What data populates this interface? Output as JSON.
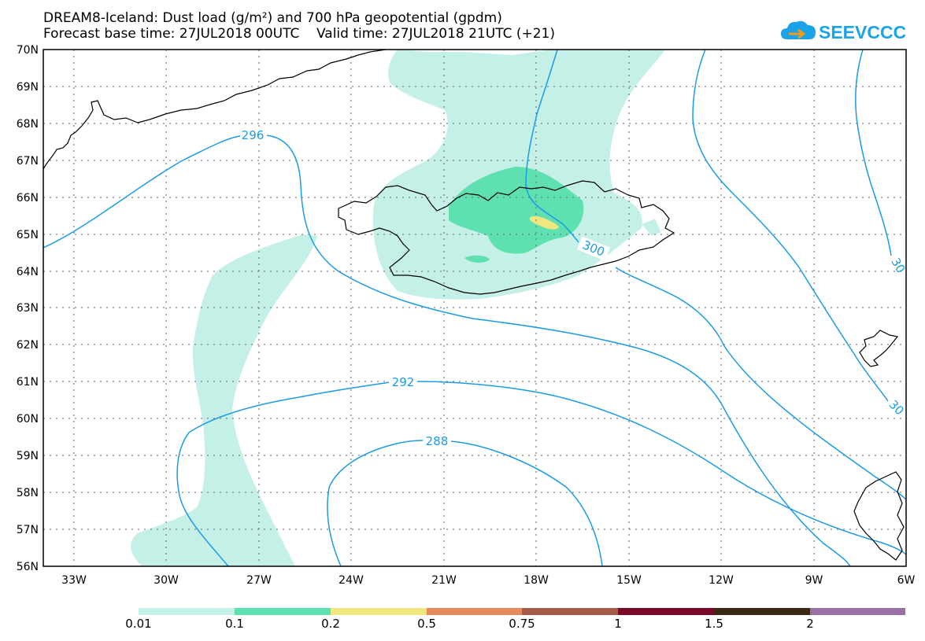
{
  "header": {
    "title": "DREAM8-Iceland: Dust load (g/m²) and 700 hPa geopotential (gpdm)",
    "subtitle": "Forecast base time: 27JUL2018 00UTC    Valid time: 27JUL2018 21UTC (+21)",
    "logo_text": "SEEVCCC",
    "logo_icon": "cloud-arrow-icon",
    "logo_color": "#1aa3e8"
  },
  "map": {
    "lat_range": [
      56,
      70
    ],
    "lon_range": [
      -34.2,
      -6
    ],
    "lat_labels": [
      "70N",
      "69N",
      "68N",
      "67N",
      "66N",
      "65N",
      "64N",
      "63N",
      "62N",
      "61N",
      "60N",
      "59N",
      "58N",
      "57N",
      "56N"
    ],
    "lon_labels": [
      "33W",
      "30W",
      "27W",
      "24W",
      "21W",
      "18W",
      "15W",
      "12W",
      "9W",
      "6W"
    ],
    "contour_labels": [
      "296",
      "300",
      "292",
      "288",
      "30",
      "30"
    ],
    "contour_color": "#1a9be6",
    "coast_color": "#000000",
    "grid": "dotted"
  },
  "colorbar": {
    "labels": [
      "0.01",
      "0.1",
      "0.2",
      "0.5",
      "0.75",
      "1",
      "1.5",
      "2"
    ],
    "colors": [
      "#c5f0e8",
      "#5fe0b0",
      "#f2e680",
      "#e68a5c",
      "#a65a4a",
      "#7a0a2a",
      "#3a2a14",
      "#9a70a6"
    ]
  }
}
